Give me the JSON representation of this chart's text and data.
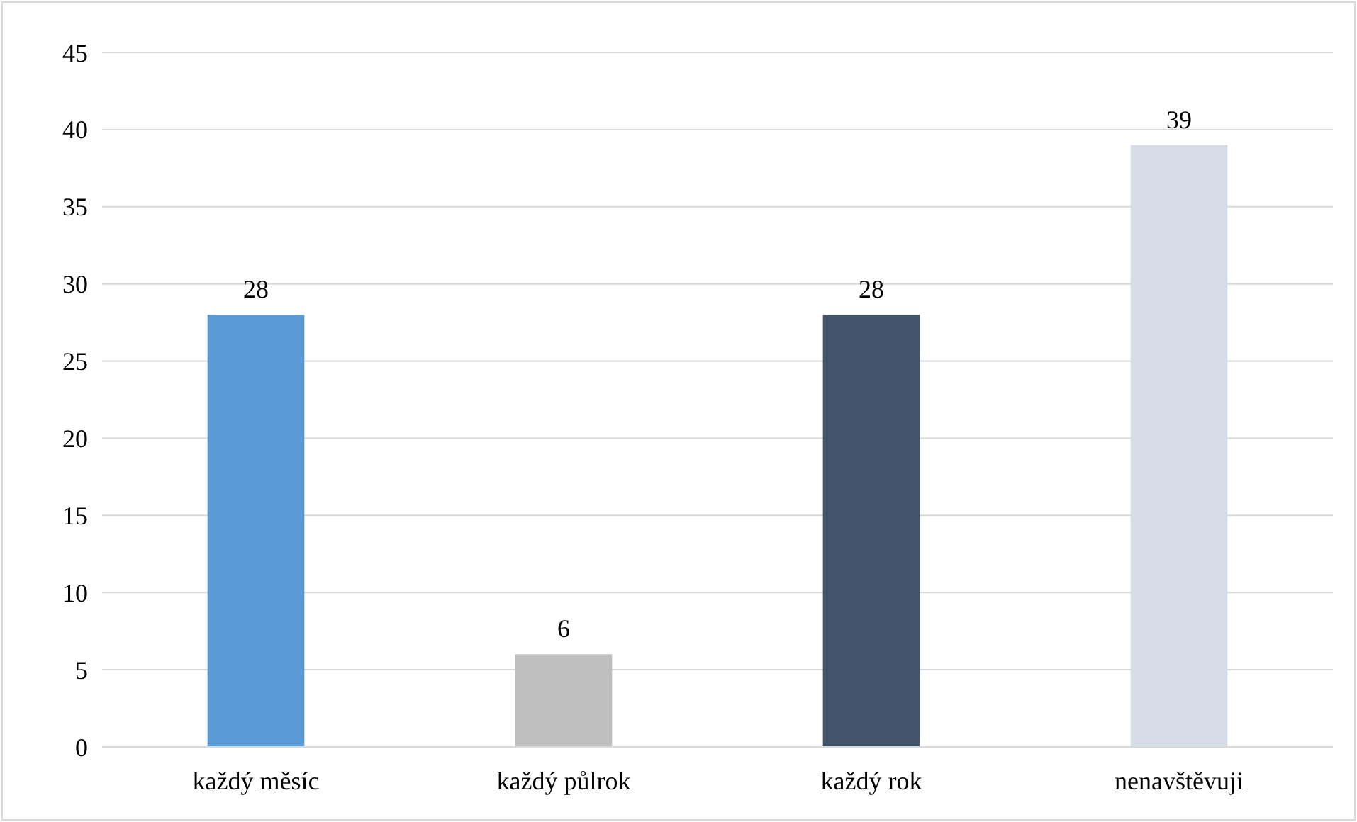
{
  "chart_data": {
    "type": "bar",
    "categories": [
      "každý měsíc",
      "každý půlrok",
      "každý rok",
      "nenavštěvuji"
    ],
    "values": [
      28,
      6,
      28,
      39
    ],
    "colors": [
      "#5b9bd5",
      "#bfbfbf",
      "#44546a",
      "#d6dce5"
    ],
    "ylim": [
      0,
      45
    ],
    "yticks": [
      0,
      5,
      10,
      15,
      20,
      25,
      30,
      35,
      40,
      45
    ],
    "grid": "y",
    "data_labels": true
  }
}
